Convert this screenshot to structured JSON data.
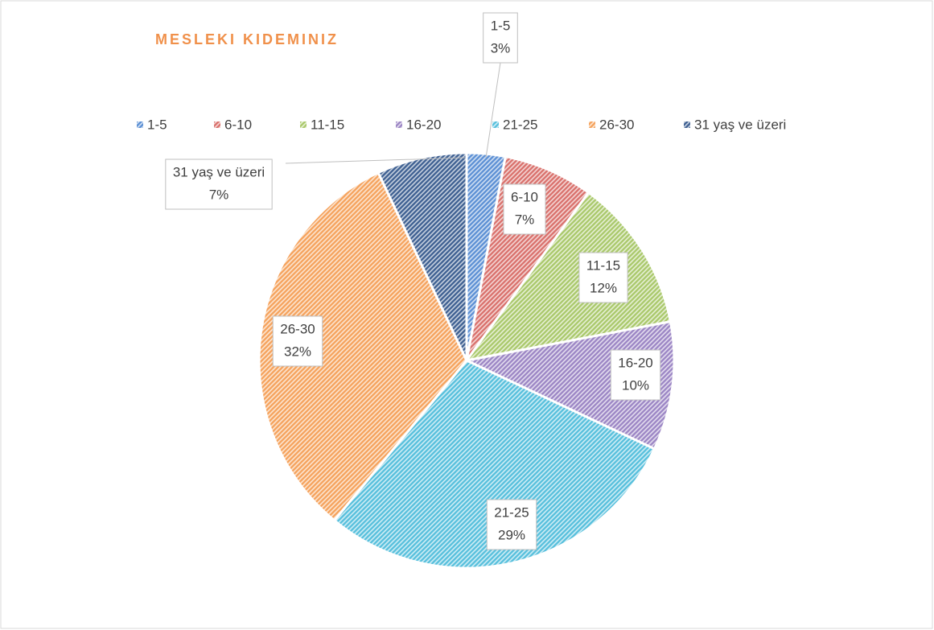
{
  "chart_data": {
    "type": "pie",
    "title": "MESLEKI KIDEMINIZ",
    "categories": [
      "1-5",
      "6-10",
      "11-15",
      "16-20",
      "21-25",
      "26-30",
      "31 yaş ve üzeri"
    ],
    "values": [
      3,
      7,
      12,
      10,
      29,
      32,
      7
    ],
    "value_labels": [
      "3%",
      "7%",
      "12%",
      "10%",
      "29%",
      "32%",
      "7%"
    ],
    "colors": [
      "#5b8fd4",
      "#d9706b",
      "#a9c86a",
      "#9b85c4",
      "#56bfdc",
      "#f5a25c",
      "#3d5f91"
    ],
    "legend": "top"
  }
}
